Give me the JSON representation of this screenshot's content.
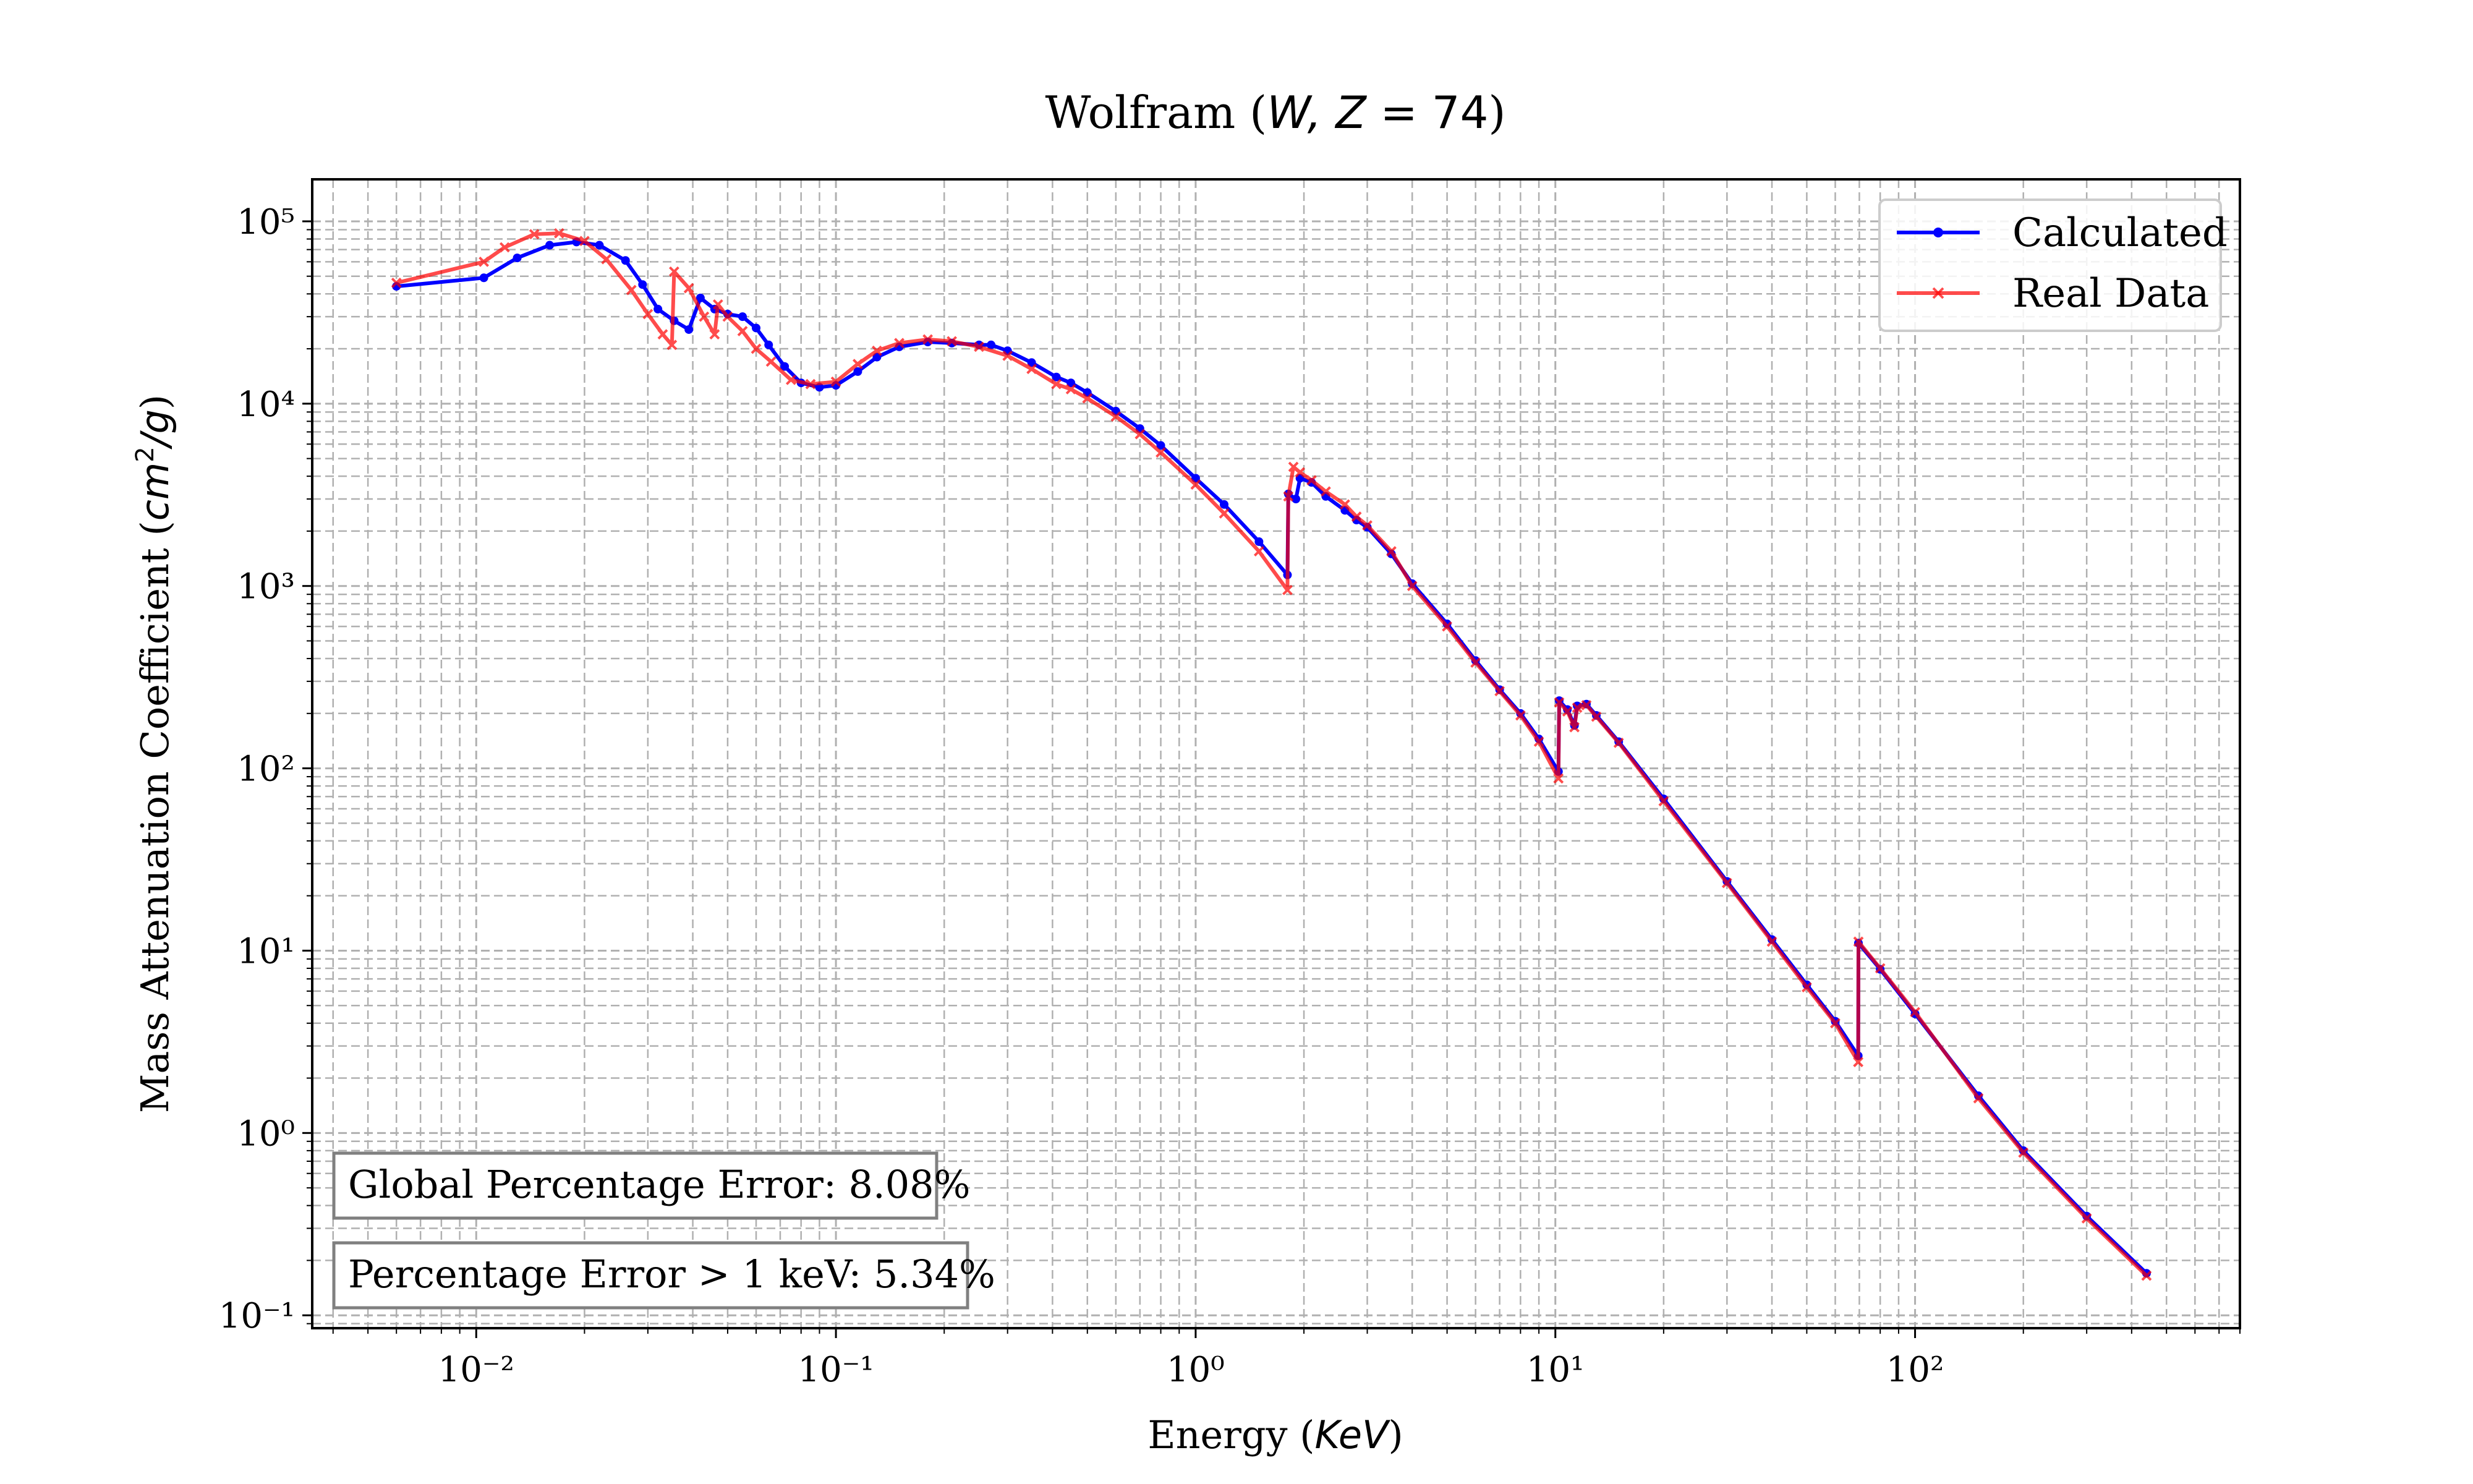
{
  "chart_data": {
    "type": "line",
    "title": "Wolfram (W, Z = 74)",
    "xlabel": "Energy (KeV)",
    "ylabel": "Mass Attenuation Coefficient (cm²/g)",
    "xscale": "log",
    "yscale": "log",
    "xlim": [
      0.0035,
      800
    ],
    "ylim": [
      0.085,
      170000
    ],
    "grid": true,
    "legend": "top-right",
    "x_ticks": [
      {
        "value": 0.01,
        "label": "10⁻²"
      },
      {
        "value": 0.1,
        "label": "10⁻¹"
      },
      {
        "value": 1,
        "label": "10⁰"
      },
      {
        "value": 10,
        "label": "10¹"
      },
      {
        "value": 100,
        "label": "10²"
      }
    ],
    "y_ticks": [
      {
        "value": 0.1,
        "label": "10⁻¹"
      },
      {
        "value": 1,
        "label": "10⁰"
      },
      {
        "value": 10,
        "label": "10¹"
      },
      {
        "value": 100,
        "label": "10²"
      },
      {
        "value": 1000,
        "label": "10³"
      },
      {
        "value": 10000,
        "label": "10⁴"
      },
      {
        "value": 100000,
        "label": "10⁵"
      }
    ],
    "series": [
      {
        "name": "Calculated",
        "color": "#0000ff",
        "marker": "dot",
        "points": [
          [
            0.006,
            44000
          ],
          [
            0.0105,
            49000
          ],
          [
            0.013,
            63000
          ],
          [
            0.016,
            74000
          ],
          [
            0.019,
            77000
          ],
          [
            0.022,
            74000
          ],
          [
            0.026,
            61000
          ],
          [
            0.029,
            45000
          ],
          [
            0.032,
            33000
          ],
          [
            0.0355,
            28500
          ],
          [
            0.039,
            25500
          ],
          [
            0.042,
            38000
          ],
          [
            0.046,
            33000
          ],
          [
            0.05,
            31000
          ],
          [
            0.055,
            30000
          ],
          [
            0.06,
            26000
          ],
          [
            0.065,
            21000
          ],
          [
            0.072,
            16000
          ],
          [
            0.08,
            13000
          ],
          [
            0.09,
            12300
          ],
          [
            0.1,
            12600
          ],
          [
            0.115,
            15000
          ],
          [
            0.13,
            18000
          ],
          [
            0.15,
            20500
          ],
          [
            0.18,
            21800
          ],
          [
            0.21,
            21500
          ],
          [
            0.25,
            21000
          ],
          [
            0.27,
            21000
          ],
          [
            0.3,
            19500
          ],
          [
            0.35,
            16800
          ],
          [
            0.41,
            14000
          ],
          [
            0.45,
            13000
          ],
          [
            0.5,
            11500
          ],
          [
            0.6,
            9100
          ],
          [
            0.7,
            7300
          ],
          [
            0.8,
            5900
          ],
          [
            1.0,
            3900
          ],
          [
            1.2,
            2800
          ],
          [
            1.5,
            1750
          ],
          [
            1.8,
            1150
          ],
          [
            1.81,
            3200
          ],
          [
            1.9,
            3000
          ],
          [
            1.95,
            3900
          ],
          [
            2.1,
            3700
          ],
          [
            2.3,
            3100
          ],
          [
            2.6,
            2600
          ],
          [
            2.8,
            2300
          ],
          [
            3.0,
            2100
          ],
          [
            3.5,
            1500
          ],
          [
            4.0,
            1030
          ],
          [
            5.0,
            620
          ],
          [
            6.0,
            390
          ],
          [
            7.0,
            270
          ],
          [
            8.0,
            200
          ],
          [
            9.0,
            145
          ],
          [
            10.2,
            96
          ],
          [
            10.25,
            235
          ],
          [
            10.8,
            210
          ],
          [
            11.3,
            172
          ],
          [
            11.5,
            220
          ],
          [
            12.2,
            225
          ],
          [
            13.0,
            195
          ],
          [
            15.0,
            140
          ],
          [
            20.0,
            68
          ],
          [
            30.0,
            24
          ],
          [
            40.0,
            11.5
          ],
          [
            50.0,
            6.5
          ],
          [
            60.0,
            4.1
          ],
          [
            69.5,
            2.65
          ],
          [
            69.6,
            11.0
          ],
          [
            80.0,
            7.9
          ],
          [
            100.0,
            4.5
          ],
          [
            150.0,
            1.6
          ],
          [
            200.0,
            0.8
          ],
          [
            300.0,
            0.35
          ],
          [
            440.0,
            0.17
          ]
        ]
      },
      {
        "name": "Real Data",
        "color": "#ff3333",
        "marker": "x",
        "points": [
          [
            0.006,
            46000
          ],
          [
            0.0105,
            60000
          ],
          [
            0.012,
            72000
          ],
          [
            0.0145,
            85000
          ],
          [
            0.017,
            86000
          ],
          [
            0.02,
            78000
          ],
          [
            0.023,
            62000
          ],
          [
            0.027,
            42000
          ],
          [
            0.03,
            31000
          ],
          [
            0.033,
            24000
          ],
          [
            0.035,
            21000
          ],
          [
            0.0355,
            53000
          ],
          [
            0.039,
            43000
          ],
          [
            0.043,
            30000
          ],
          [
            0.046,
            24000
          ],
          [
            0.047,
            35000
          ],
          [
            0.05,
            30000
          ],
          [
            0.055,
            25000
          ],
          [
            0.06,
            20000
          ],
          [
            0.066,
            17000
          ],
          [
            0.075,
            13500
          ],
          [
            0.085,
            12800
          ],
          [
            0.1,
            13200
          ],
          [
            0.115,
            16500
          ],
          [
            0.13,
            19500
          ],
          [
            0.15,
            21500
          ],
          [
            0.18,
            22500
          ],
          [
            0.21,
            22000
          ],
          [
            0.25,
            20500
          ],
          [
            0.3,
            18300
          ],
          [
            0.35,
            15500
          ],
          [
            0.41,
            12800
          ],
          [
            0.45,
            12000
          ],
          [
            0.5,
            10700
          ],
          [
            0.6,
            8500
          ],
          [
            0.7,
            6800
          ],
          [
            0.8,
            5400
          ],
          [
            1.0,
            3600
          ],
          [
            1.2,
            2500
          ],
          [
            1.5,
            1550
          ],
          [
            1.8,
            950
          ],
          [
            1.81,
            3100
          ],
          [
            1.87,
            4500
          ],
          [
            1.95,
            4200
          ],
          [
            2.1,
            3800
          ],
          [
            2.3,
            3300
          ],
          [
            2.6,
            2800
          ],
          [
            2.8,
            2400
          ],
          [
            3.0,
            2150
          ],
          [
            3.5,
            1550
          ],
          [
            4.0,
            1000
          ],
          [
            5.0,
            600
          ],
          [
            6.0,
            380
          ],
          [
            7.0,
            265
          ],
          [
            8.0,
            195
          ],
          [
            9.0,
            140
          ],
          [
            10.2,
            88
          ],
          [
            10.25,
            230
          ],
          [
            10.8,
            205
          ],
          [
            11.3,
            168
          ],
          [
            11.5,
            215
          ],
          [
            12.2,
            222
          ],
          [
            13.0,
            192
          ],
          [
            15.0,
            138
          ],
          [
            20.0,
            66
          ],
          [
            30.0,
            23.5
          ],
          [
            40.0,
            11.2
          ],
          [
            50.0,
            6.3
          ],
          [
            60.0,
            4.0
          ],
          [
            69.5,
            2.45
          ],
          [
            69.6,
            11.2
          ],
          [
            80.0,
            8.0
          ],
          [
            100.0,
            4.6
          ],
          [
            150.0,
            1.55
          ],
          [
            200.0,
            0.78
          ],
          [
            300.0,
            0.34
          ],
          [
            440.0,
            0.165
          ]
        ]
      }
    ],
    "annotations": [
      "Global Percentage Error: 8.08%",
      "Percentage Error > 1 keV: 5.34%"
    ]
  }
}
